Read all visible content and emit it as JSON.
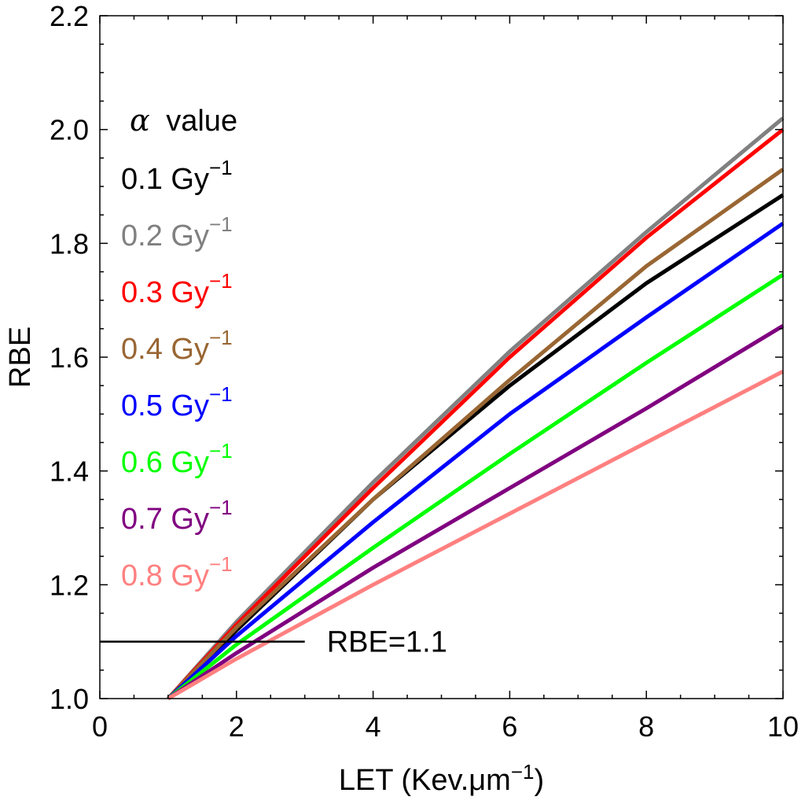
{
  "chart_data": {
    "type": "line",
    "xlabel": "LET (Kev.μm⁻¹)",
    "ylabel": "RBE",
    "xlim": [
      0,
      10
    ],
    "ylim": [
      1.0,
      2.2
    ],
    "x_ticks": [
      0,
      2,
      4,
      6,
      8,
      10
    ],
    "y_ticks": [
      1.0,
      1.2,
      1.4,
      1.6,
      1.8,
      2.0,
      2.2
    ],
    "x_tick_labels": [
      "0",
      "2",
      "4",
      "6",
      "8",
      "10"
    ],
    "y_tick_labels": [
      "1.0",
      "1.2",
      "1.4",
      "1.6",
      "1.8",
      "2.0",
      "2.2"
    ],
    "grid": false,
    "legend_title_symbol": "α",
    "legend_title": "value",
    "legend_position": "top-left",
    "series": [
      {
        "name": "0.1 Gy",
        "unit_exp": "−1",
        "color": "#000000",
        "x": [
          1,
          2,
          4,
          6,
          8,
          10
        ],
        "y": [
          1.0,
          1.12,
          1.35,
          1.55,
          1.73,
          1.885
        ]
      },
      {
        "name": "0.2 Gy",
        "unit_exp": "−1",
        "color": "#808080",
        "x": [
          1,
          2,
          4,
          6,
          8,
          10
        ],
        "y": [
          1.0,
          1.135,
          1.38,
          1.61,
          1.82,
          2.02
        ]
      },
      {
        "name": "0.3 Gy",
        "unit_exp": "−1",
        "color": "#ff0000",
        "x": [
          1,
          2,
          4,
          6,
          8,
          10
        ],
        "y": [
          1.0,
          1.13,
          1.37,
          1.6,
          1.81,
          2.0
        ]
      },
      {
        "name": "0.4 Gy",
        "unit_exp": "−1",
        "color": "#996633",
        "x": [
          1,
          2,
          4,
          6,
          8,
          10
        ],
        "y": [
          1.0,
          1.125,
          1.35,
          1.56,
          1.76,
          1.93
        ]
      },
      {
        "name": "0.5 Gy",
        "unit_exp": "−1",
        "color": "#0000ff",
        "x": [
          1,
          2,
          4,
          6,
          8,
          10
        ],
        "y": [
          1.0,
          1.11,
          1.31,
          1.5,
          1.67,
          1.835
        ]
      },
      {
        "name": "0.6 Gy",
        "unit_exp": "−1",
        "color": "#00ff00",
        "x": [
          1,
          2,
          4,
          6,
          8,
          10
        ],
        "y": [
          1.0,
          1.095,
          1.265,
          1.43,
          1.59,
          1.745
        ]
      },
      {
        "name": "0.7 Gy",
        "unit_exp": "−1",
        "color": "#800080",
        "x": [
          1,
          2,
          4,
          6,
          8,
          10
        ],
        "y": [
          1.0,
          1.08,
          1.23,
          1.37,
          1.51,
          1.655
        ]
      },
      {
        "name": "0.8 Gy",
        "unit_exp": "−1",
        "color": "#ff8080",
        "x": [
          1,
          2,
          4,
          6,
          8,
          10
        ],
        "y": [
          1.0,
          1.07,
          1.2,
          1.325,
          1.45,
          1.575
        ]
      }
    ],
    "reference_line": {
      "label": "RBE=1.1",
      "y": 1.1,
      "x_start": 0,
      "x_end": 3,
      "color": "#000000"
    }
  }
}
